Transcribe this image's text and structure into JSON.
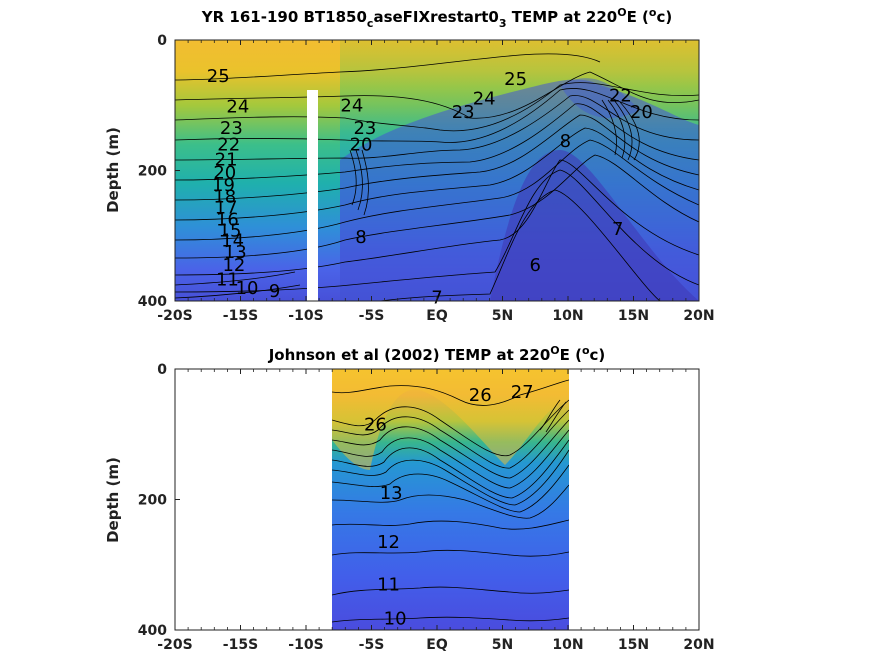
{
  "chart_data": [
    {
      "type": "contour",
      "title_parts": [
        "YR 161-190 BT1850",
        "c",
        "aseFIXrestart0",
        "3",
        " TEMP at 220",
        "O",
        "E (",
        "o",
        "c)"
      ],
      "ylabel": "Depth (m)",
      "xlim": [
        -20,
        20
      ],
      "ylim": [
        0,
        400
      ],
      "y_reversed": true,
      "xticks": [
        -20,
        -15,
        -10,
        -5,
        0,
        5,
        10,
        15,
        20
      ],
      "xtick_labels": [
        "-20S",
        "-15S",
        "-10S",
        "-5S",
        "EQ",
        "5N",
        "10N",
        "15N",
        "20N"
      ],
      "yticks": [
        0,
        200,
        400
      ],
      "ytick_labels": [
        "0",
        "200",
        "400"
      ],
      "missing_column": [
        -10,
        80,
        400
      ],
      "contour_labels": [
        {
          "text": "25",
          "x": -16.7,
          "y": 55
        },
        {
          "text": "24",
          "x": -15.2,
          "y": 102
        },
        {
          "text": "23",
          "x": -15.7,
          "y": 135
        },
        {
          "text": "22",
          "x": -15.9,
          "y": 160
        },
        {
          "text": "21",
          "x": -16.1,
          "y": 183
        },
        {
          "text": "20",
          "x": -16.2,
          "y": 203
        },
        {
          "text": "19",
          "x": -16.3,
          "y": 222
        },
        {
          "text": "18",
          "x": -16.2,
          "y": 240
        },
        {
          "text": "17",
          "x": -16.1,
          "y": 257
        },
        {
          "text": "16",
          "x": -16.0,
          "y": 275
        },
        {
          "text": "15",
          "x": -15.8,
          "y": 292
        },
        {
          "text": "14",
          "x": -15.6,
          "y": 307
        },
        {
          "text": "13",
          "x": -15.4,
          "y": 325
        },
        {
          "text": "12",
          "x": -15.5,
          "y": 345
        },
        {
          "text": "11",
          "x": -16.0,
          "y": 367
        },
        {
          "text": "10",
          "x": -14.5,
          "y": 380
        },
        {
          "text": "9",
          "x": -12.4,
          "y": 385
        },
        {
          "text": "24",
          "x": -6.5,
          "y": 100
        },
        {
          "text": "23",
          "x": -5.5,
          "y": 135
        },
        {
          "text": "20",
          "x": -5.8,
          "y": 160
        },
        {
          "text": "8",
          "x": -5.8,
          "y": 302
        },
        {
          "text": "7",
          "x": 0.0,
          "y": 395
        },
        {
          "text": "25",
          "x": 6.0,
          "y": 60
        },
        {
          "text": "24",
          "x": 3.6,
          "y": 90
        },
        {
          "text": "23",
          "x": 2.0,
          "y": 110
        },
        {
          "text": "6",
          "x": 7.5,
          "y": 345
        },
        {
          "text": "7",
          "x": 13.8,
          "y": 290
        },
        {
          "text": "8",
          "x": 9.8,
          "y": 155
        },
        {
          "text": "22",
          "x": 14.0,
          "y": 85
        },
        {
          "text": "20",
          "x": 15.6,
          "y": 110
        }
      ]
    },
    {
      "type": "contour",
      "title_parts": [
        "Johnson et al (2002) TEMP at 220",
        "O",
        "E (",
        "o",
        "c)"
      ],
      "ylabel": "Depth (m)",
      "xlim": [
        -20,
        20
      ],
      "ylim": [
        0,
        400
      ],
      "y_reversed": true,
      "xticks": [
        -20,
        -15,
        -10,
        -5,
        0,
        5,
        10,
        15,
        20
      ],
      "xtick_labels": [
        "-20S",
        "-15S",
        "-10S",
        "-5S",
        "EQ",
        "5N",
        "10N",
        "15N",
        "20N"
      ],
      "yticks": [
        0,
        200,
        400
      ],
      "ytick_labels": [
        "0",
        "200",
        "400"
      ],
      "data_extent": [
        -8,
        10
      ],
      "contour_labels": [
        {
          "text": "26",
          "x": 3.3,
          "y": 40
        },
        {
          "text": "27",
          "x": 6.5,
          "y": 35
        },
        {
          "text": "26",
          "x": -4.7,
          "y": 85
        },
        {
          "text": "13",
          "x": -3.5,
          "y": 190
        },
        {
          "text": "12",
          "x": -3.7,
          "y": 265
        },
        {
          "text": "11",
          "x": -3.7,
          "y": 330
        },
        {
          "text": "10",
          "x": -3.2,
          "y": 382
        }
      ]
    }
  ]
}
